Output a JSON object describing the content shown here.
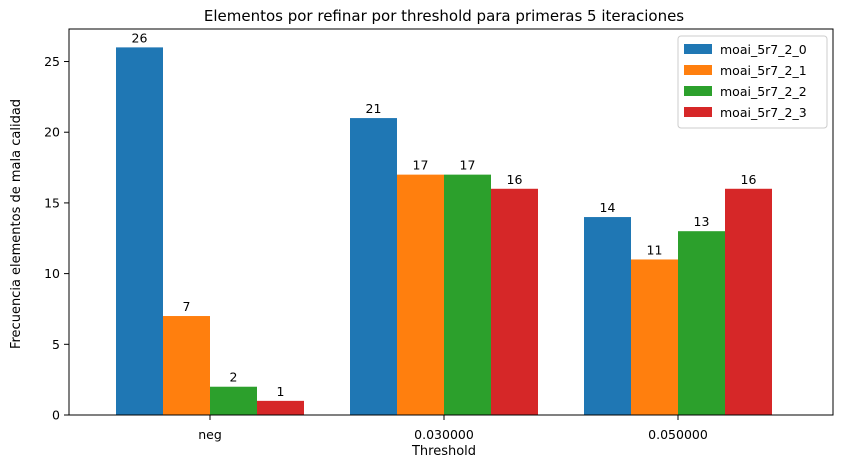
{
  "chart_data": {
    "type": "bar",
    "title": "Elementos por refinar por threshold para primeras 5 iteraciones",
    "xlabel": "Threshold",
    "ylabel": "Frecuencia elementos de mala calidad",
    "categories": [
      "neg",
      "0.030000",
      "0.050000"
    ],
    "series": [
      {
        "name": "moai_5r7_2_0",
        "color": "#1f77b4",
        "values": [
          26,
          21,
          14
        ]
      },
      {
        "name": "moai_5r7_2_1",
        "color": "#ff7f0e",
        "values": [
          7,
          17,
          11
        ]
      },
      {
        "name": "moai_5r7_2_2",
        "color": "#2ca02c",
        "values": [
          2,
          17,
          13
        ]
      },
      {
        "name": "moai_5r7_2_3",
        "color": "#d62728",
        "values": [
          1,
          16,
          16
        ]
      }
    ],
    "yticks": [
      0,
      5,
      10,
      15,
      20,
      25
    ],
    "ylim": [
      0,
      27.3
    ],
    "grid": false,
    "legend": "top-right",
    "data_labels": true
  }
}
